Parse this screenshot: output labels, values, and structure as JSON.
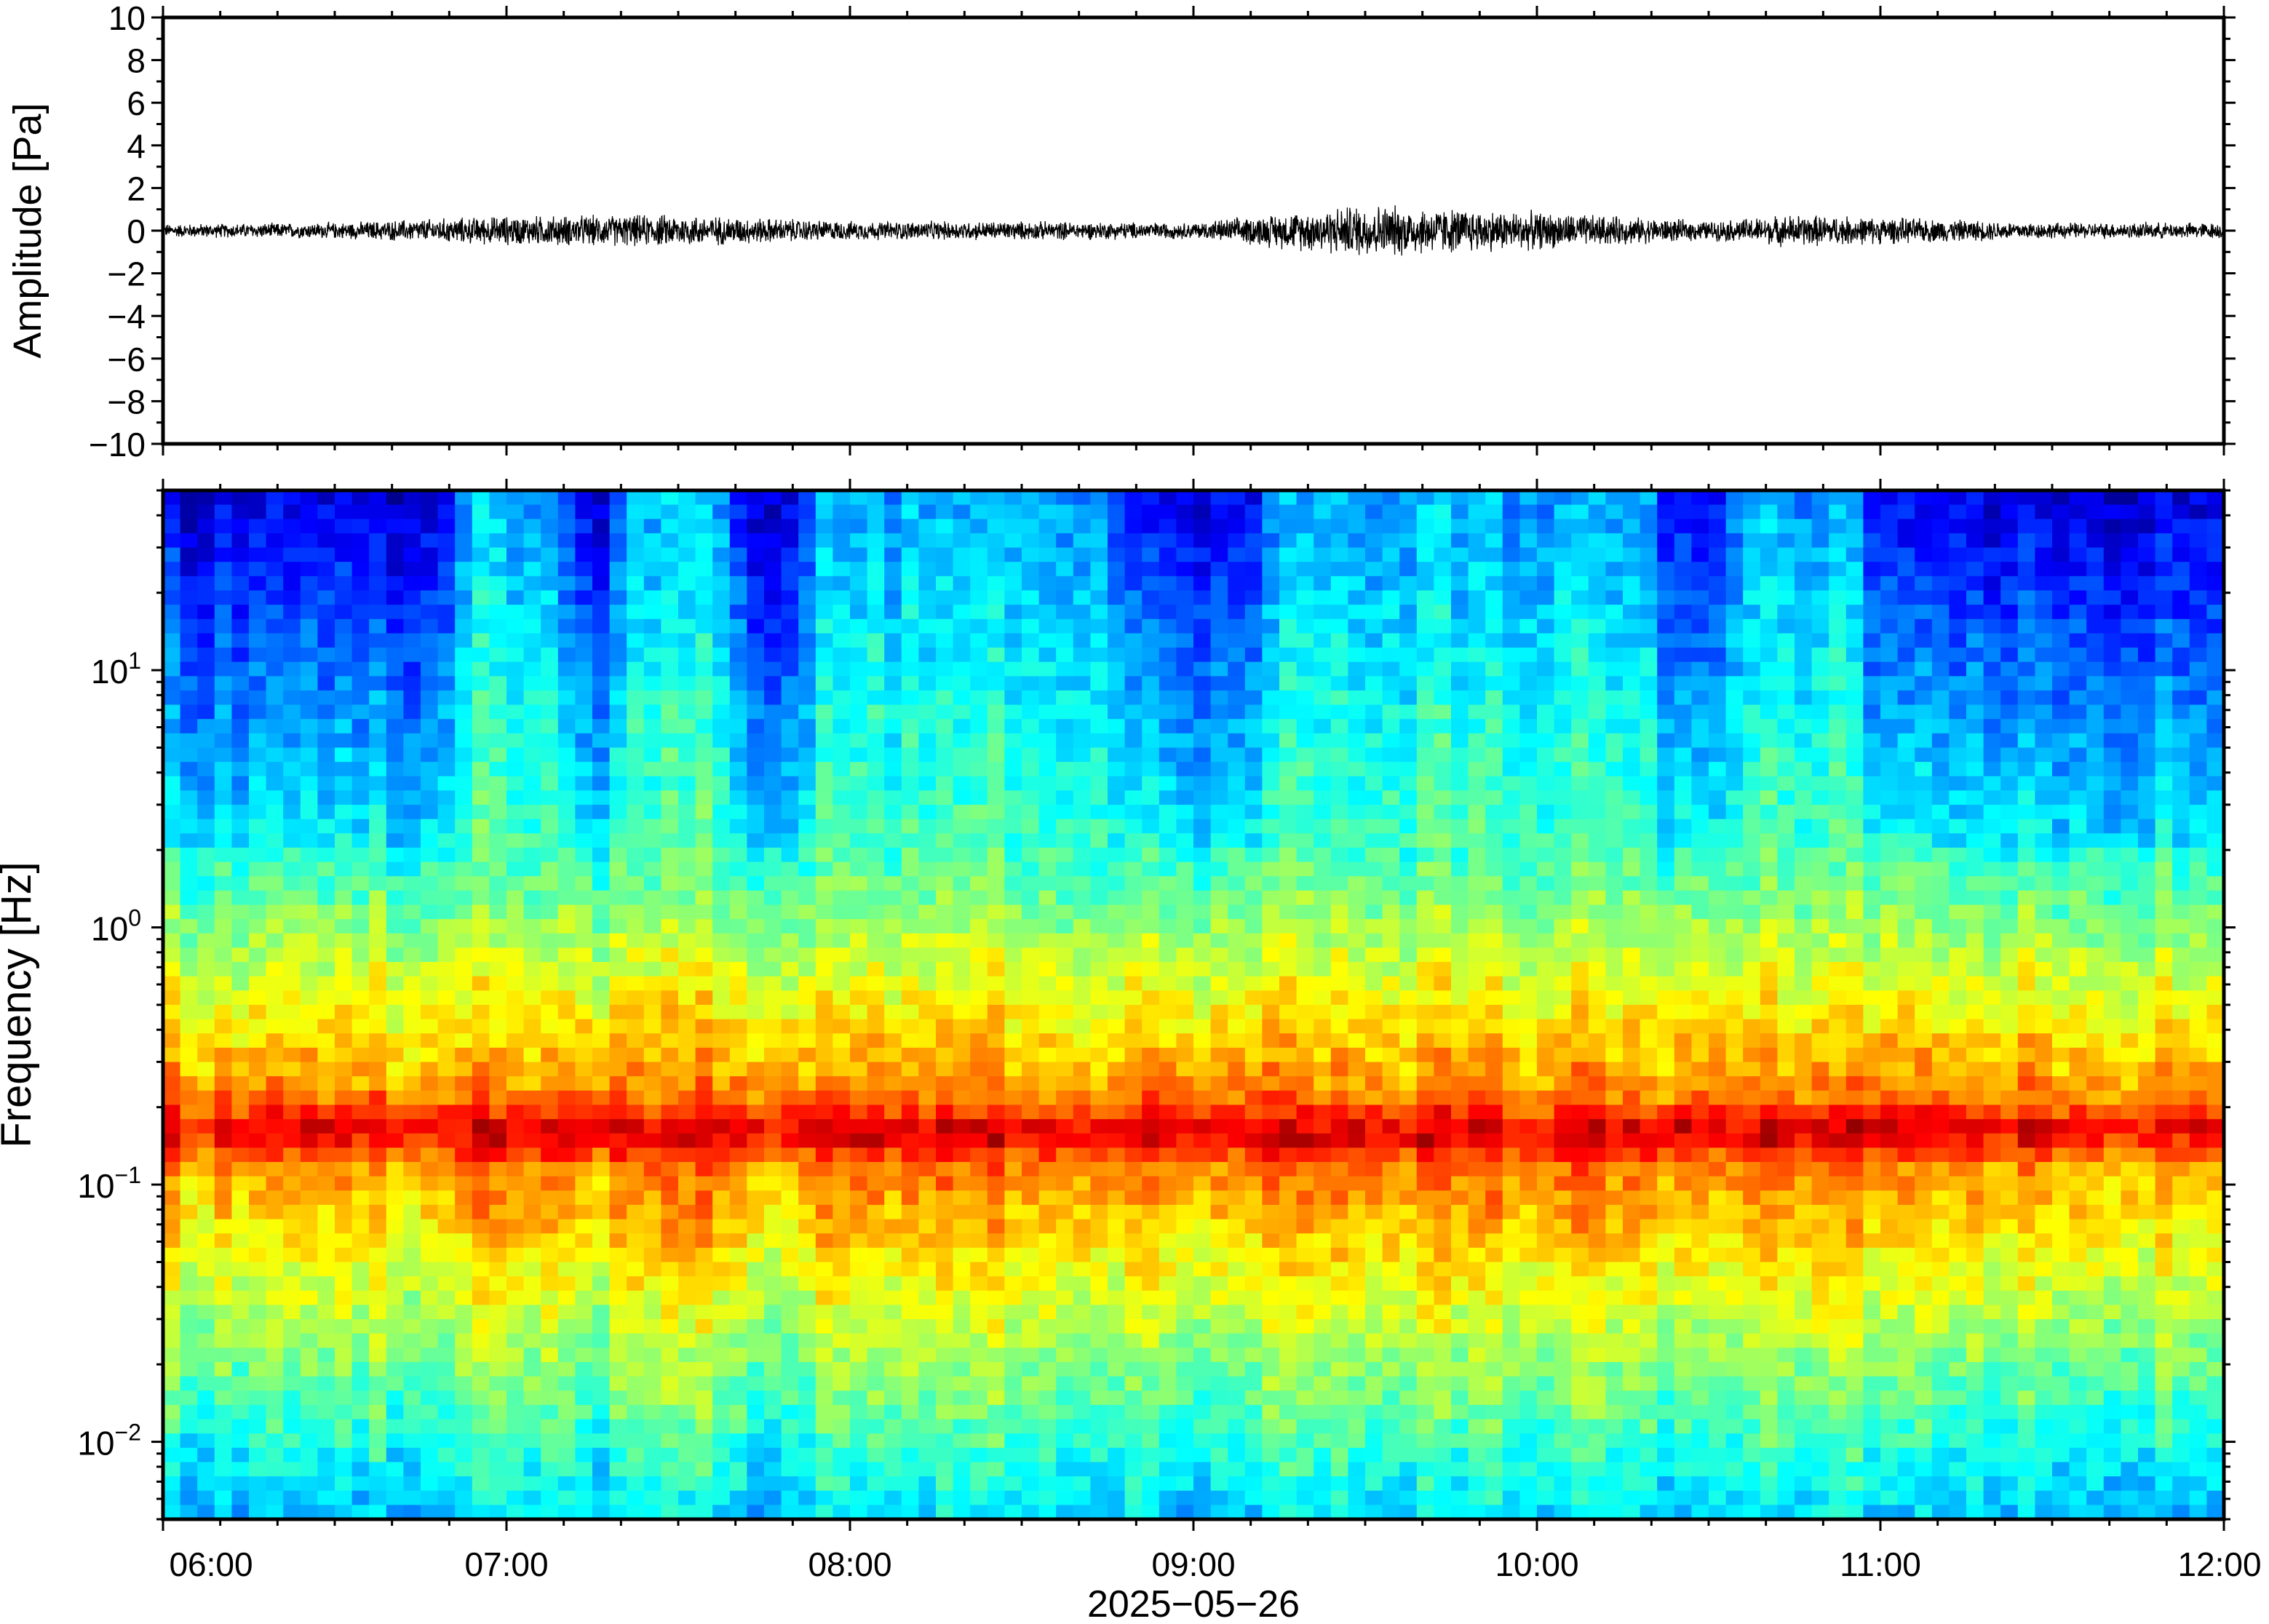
{
  "chart_data": [
    {
      "type": "line",
      "title": "",
      "ylabel": "Amplitude [Pa]",
      "ylim": [
        -10,
        10
      ],
      "y_ticks": [
        10,
        8,
        6,
        4,
        2,
        0,
        -2,
        -4,
        -6,
        -8,
        -10
      ],
      "y_tick_labels": [
        "10",
        "8",
        "6",
        "4",
        "2",
        "0",
        "−2",
        "−4",
        "−6",
        "−8",
        "−10"
      ],
      "x_range_hours": [
        6,
        12
      ],
      "series": [
        {
          "color": "#000000",
          "envelope_points": [
            {
              "t": "06:00",
              "amp": 0.25
            },
            {
              "t": "06:30",
              "amp": 0.3
            },
            {
              "t": "07:00",
              "amp": 0.55
            },
            {
              "t": "07:30",
              "amp": 0.6
            },
            {
              "t": "08:00",
              "amp": 0.35
            },
            {
              "t": "08:30",
              "amp": 0.35
            },
            {
              "t": "09:00",
              "amp": 0.3
            },
            {
              "t": "09:30",
              "amp": 1.0
            },
            {
              "t": "10:00",
              "amp": 0.7
            },
            {
              "t": "10:30",
              "amp": 0.35
            },
            {
              "t": "10:45",
              "amp": 0.6
            },
            {
              "t": "11:30",
              "amp": 0.3
            },
            {
              "t": "12:00",
              "amp": 0.3
            }
          ]
        }
      ]
    },
    {
      "type": "heatmap",
      "title": "",
      "ylabel": "Frequency [Hz]",
      "xlabel": "2025−05−26",
      "y_scale": "log",
      "ylim": [
        0.005,
        50
      ],
      "y_ticks": [
        0.01,
        0.1,
        1,
        10
      ],
      "y_tick_labels": [
        {
          "base": "10",
          "exp": "−2"
        },
        {
          "base": "10",
          "exp": "−1"
        },
        {
          "base": "10",
          "exp": "0"
        },
        {
          "base": "10",
          "exp": "1"
        }
      ],
      "x_ticks": [
        "06:00",
        "07:00",
        "08:00",
        "09:00",
        "10:00",
        "11:00",
        "12:00"
      ],
      "colormap": "jet",
      "microseism_band_hz": 0.16,
      "broadband_active_times": [
        "07:00",
        "07:30",
        "08:00-08:40",
        "09:20-09:50",
        "10:00-10:15",
        "10:40-10:50"
      ],
      "legend": "none",
      "grid": false
    }
  ]
}
